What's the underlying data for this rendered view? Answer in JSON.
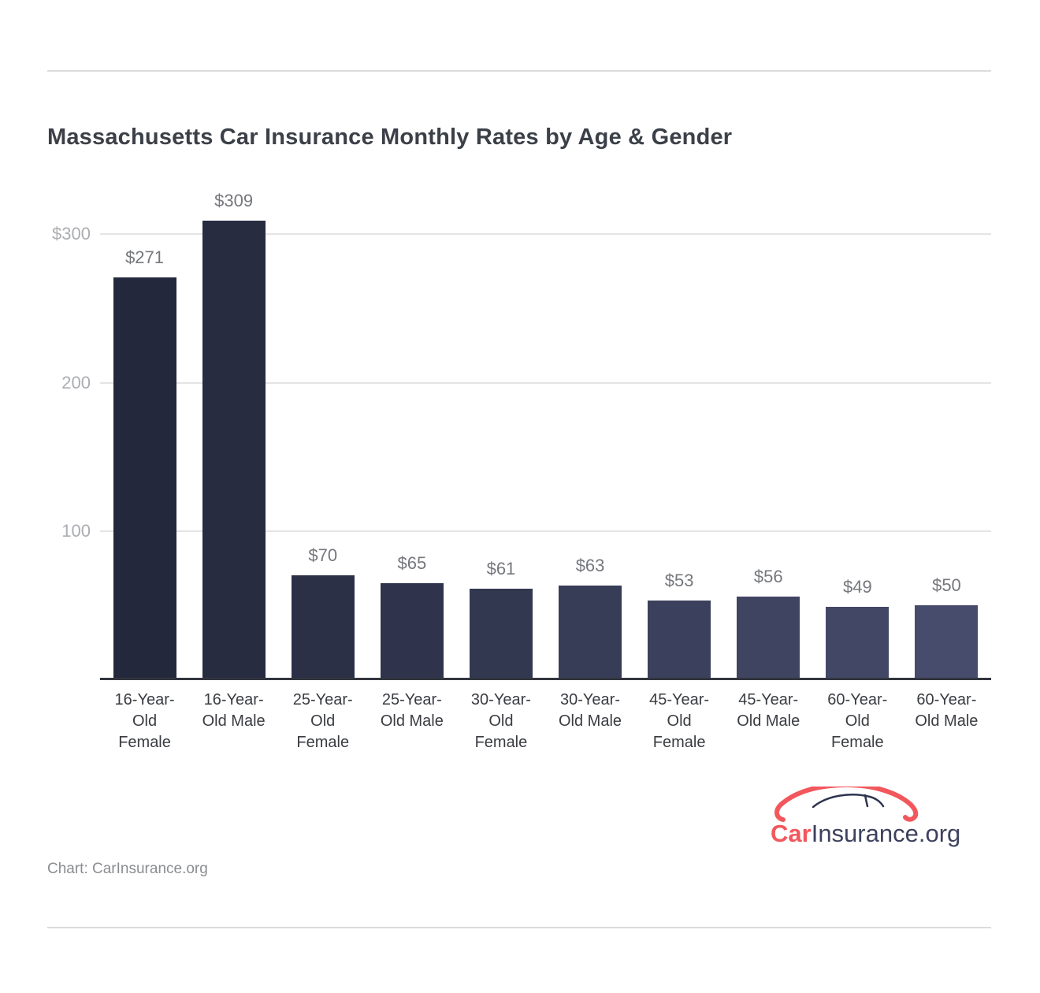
{
  "page": {
    "credit": "Chart: CarInsurance.org"
  },
  "logo": {
    "part1": "Car",
    "part2": "Insurance",
    "part3": ".org",
    "coral": "#f2575c",
    "navy": "#3c415d",
    "car_body_color": "#f2575c",
    "car_roof_color": "#2e3450"
  },
  "chart_data": {
    "type": "bar",
    "title": "Massachusetts Car Insurance Monthly Rates by Age & Gender",
    "categories": [
      "16-Year-Old Female",
      "16-Year-Old Male",
      "25-Year-Old Female",
      "25-Year-Old Male",
      "30-Year-Old Female",
      "30-Year-Old Male",
      "45-Year-Old Female",
      "45-Year-Old Male",
      "60-Year-Old Female",
      "60-Year-Old Male"
    ],
    "category_lines": [
      [
        "16-Year-",
        "Old",
        "Female"
      ],
      [
        "16-Year-",
        "Old Male"
      ],
      [
        "25-Year-",
        "Old",
        "Female"
      ],
      [
        "25-Year-",
        "Old Male"
      ],
      [
        "30-Year-",
        "Old",
        "Female"
      ],
      [
        "30-Year-",
        "Old Male"
      ],
      [
        "45-Year-",
        "Old",
        "Female"
      ],
      [
        "45-Year-",
        "Old Male"
      ],
      [
        "60-Year-",
        "Old",
        "Female"
      ],
      [
        "60-Year-",
        "Old Male"
      ]
    ],
    "values": [
      271,
      309,
      70,
      65,
      61,
      63,
      53,
      56,
      49,
      50
    ],
    "value_labels": [
      "$271",
      "$309",
      "$70",
      "$65",
      "$61",
      "$63",
      "$53",
      "$56",
      "$49",
      "$50"
    ],
    "bar_colors": [
      "#23283c",
      "#272c41",
      "#2b3047",
      "#2f344c",
      "#333851",
      "#373c57",
      "#3b405c",
      "#3f4461",
      "#434766",
      "#474b6c"
    ],
    "xlabel": "",
    "ylabel": "",
    "ylim": [
      0,
      340
    ],
    "yticks": [
      {
        "value": 300,
        "label": "$300"
      },
      {
        "value": 200,
        "label": "200"
      },
      {
        "value": 100,
        "label": "100"
      }
    ],
    "grid": "horizontal",
    "legend": "none",
    "source": "Chart: CarInsurance.org"
  }
}
